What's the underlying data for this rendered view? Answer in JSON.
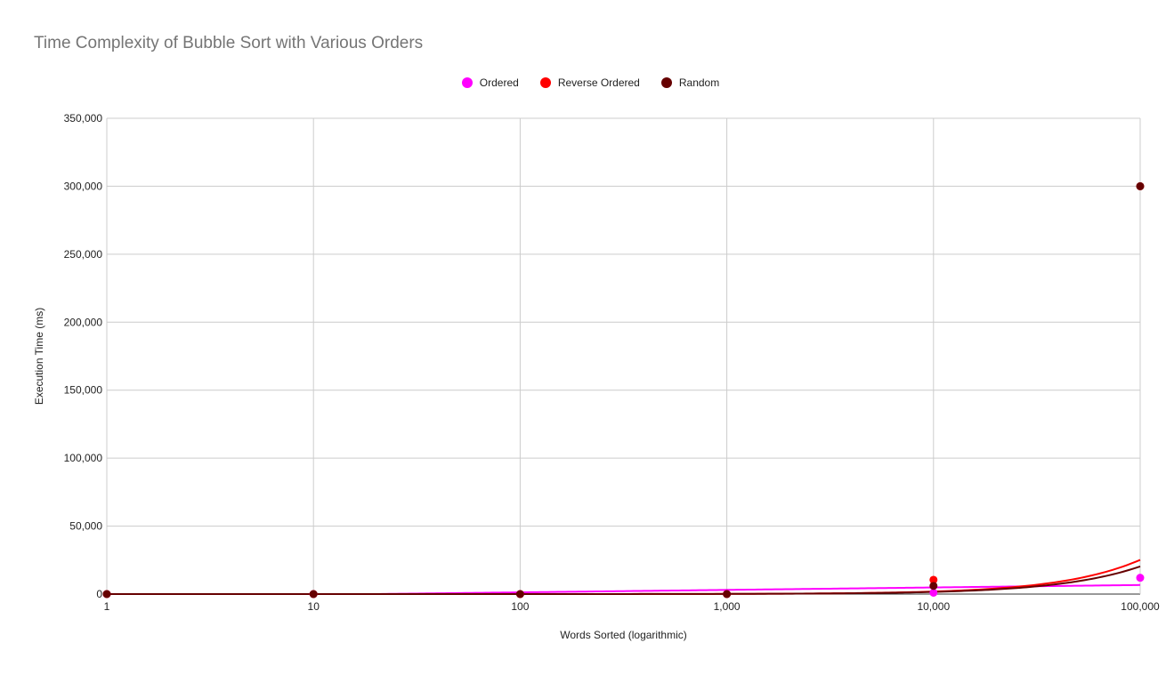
{
  "chart_data": {
    "type": "scatter",
    "title": "Time Complexity of Bubble Sort with Various Orders",
    "xlabel": "Words Sorted (logarithmic)",
    "ylabel": "Execution Time (ms)",
    "x_scale": "log",
    "x_ticks": [
      1,
      10,
      100,
      1000,
      10000,
      100000
    ],
    "x_tick_labels": [
      "1",
      "10",
      "100",
      "1,000",
      "10,000",
      "100,000"
    ],
    "ylim": [
      0,
      350000
    ],
    "y_ticks": [
      0,
      50000,
      100000,
      150000,
      200000,
      250000,
      300000,
      350000
    ],
    "y_tick_labels": [
      "0",
      "50,000",
      "100,000",
      "150,000",
      "200,000",
      "250,000",
      "300,000",
      "350,000"
    ],
    "grid": true,
    "legend_position": "top",
    "x": [
      1,
      10,
      100,
      1000,
      10000,
      100000
    ],
    "series": [
      {
        "name": "Ordered",
        "color": "#ff00ff",
        "values": [
          0,
          0,
          0,
          0,
          1000,
          12000
        ],
        "trendline": "linear"
      },
      {
        "name": "Reverse Ordered",
        "color": "#ff0000",
        "values": [
          0,
          0,
          0,
          0,
          10500,
          300000
        ],
        "trendline": "exponential"
      },
      {
        "name": "Random",
        "color": "#660000",
        "values": [
          0,
          0,
          0,
          0,
          6000,
          300000
        ],
        "trendline": "exponential"
      }
    ]
  }
}
